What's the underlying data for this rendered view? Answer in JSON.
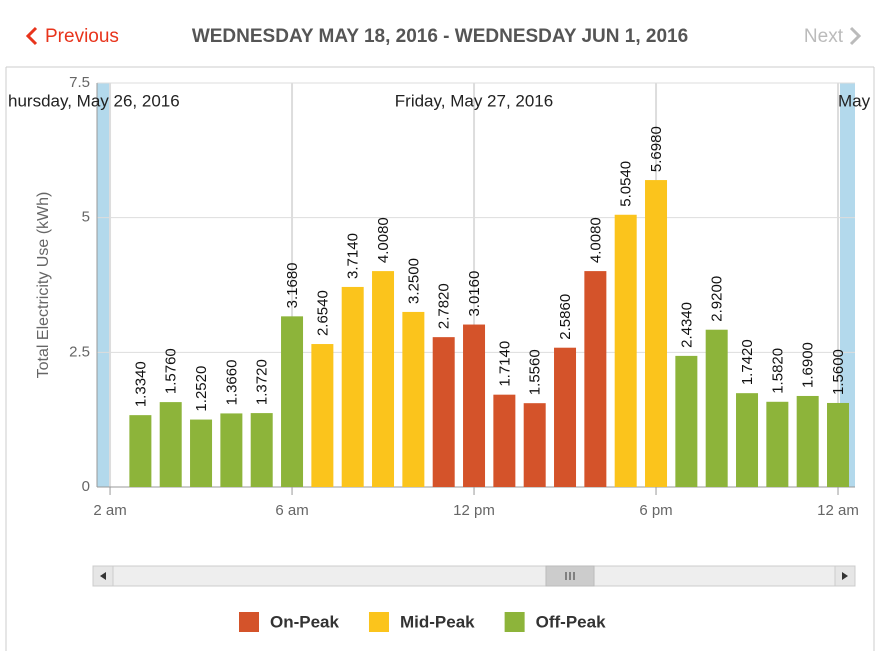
{
  "header": {
    "previous": "Previous",
    "title": "WEDNESDAY MAY 18, 2016 - WEDNESDAY JUN 1, 2016",
    "next": "Next"
  },
  "chart_data": {
    "type": "bar",
    "ylabel": "Total Electricity Use (kWh)",
    "x": [
      1,
      2,
      3,
      4,
      5,
      6,
      7,
      8,
      9,
      10,
      11,
      12,
      13,
      14,
      15,
      16,
      17,
      18,
      19,
      20,
      21,
      22,
      23,
      24
    ],
    "xlim": [
      -0.43,
      24.56
    ],
    "xticks": [
      {
        "value": 0,
        "label": "2 am"
      },
      {
        "value": 6,
        "label": "6 am"
      },
      {
        "value": 12,
        "label": "12 pm"
      },
      {
        "value": 18,
        "label": "6 pm"
      },
      {
        "value": 24,
        "label": "12 am"
      }
    ],
    "ylim": [
      0,
      7.5
    ],
    "yticks": [
      0,
      2.5,
      5,
      7.5
    ],
    "grid": true,
    "annotations": [
      "hursday, May 26, 2016",
      "Friday, May 27, 2016",
      "May"
    ],
    "series": [
      {
        "name": "On-Peak",
        "color": "#d4532a",
        "values": [
          null,
          null,
          null,
          null,
          null,
          null,
          null,
          null,
          null,
          null,
          2.782,
          3.016,
          1.714,
          1.556,
          2.586,
          4.008,
          null,
          null,
          null,
          null,
          null,
          null,
          null,
          null
        ],
        "value_labels": [
          null,
          null,
          null,
          null,
          null,
          null,
          null,
          null,
          null,
          null,
          "2.7820",
          "3.0160",
          "1.7140",
          "1.5560",
          "2.5860",
          "4.0080",
          null,
          null,
          null,
          null,
          null,
          null,
          null,
          null
        ]
      },
      {
        "name": "Mid-Peak",
        "color": "#fbc41c",
        "values": [
          null,
          null,
          null,
          null,
          null,
          null,
          2.654,
          3.714,
          4.008,
          3.25,
          null,
          null,
          null,
          null,
          null,
          null,
          5.054,
          5.698,
          null,
          null,
          null,
          null,
          null,
          null
        ],
        "value_labels": [
          null,
          null,
          null,
          null,
          null,
          null,
          "2.6540",
          "3.7140",
          "4.0080",
          "3.2500",
          null,
          null,
          null,
          null,
          null,
          null,
          "5.0540",
          "5.6980",
          null,
          null,
          null,
          null,
          null,
          null
        ]
      },
      {
        "name": "Off-Peak",
        "color": "#8db43a",
        "values": [
          1.334,
          1.576,
          1.252,
          1.366,
          1.372,
          3.168,
          null,
          null,
          null,
          null,
          null,
          null,
          null,
          null,
          null,
          null,
          null,
          null,
          2.434,
          2.92,
          1.742,
          1.582,
          1.69,
          1.56
        ],
        "value_labels": [
          "1.3340",
          "1.5760",
          "1.2520",
          "1.3660",
          "1.3720",
          "3.1680",
          null,
          null,
          null,
          null,
          null,
          null,
          null,
          null,
          null,
          null,
          null,
          null,
          "2.4340",
          "2.9200",
          "1.7420",
          "1.5820",
          "1.6900",
          "1.5600"
        ]
      }
    ]
  }
}
